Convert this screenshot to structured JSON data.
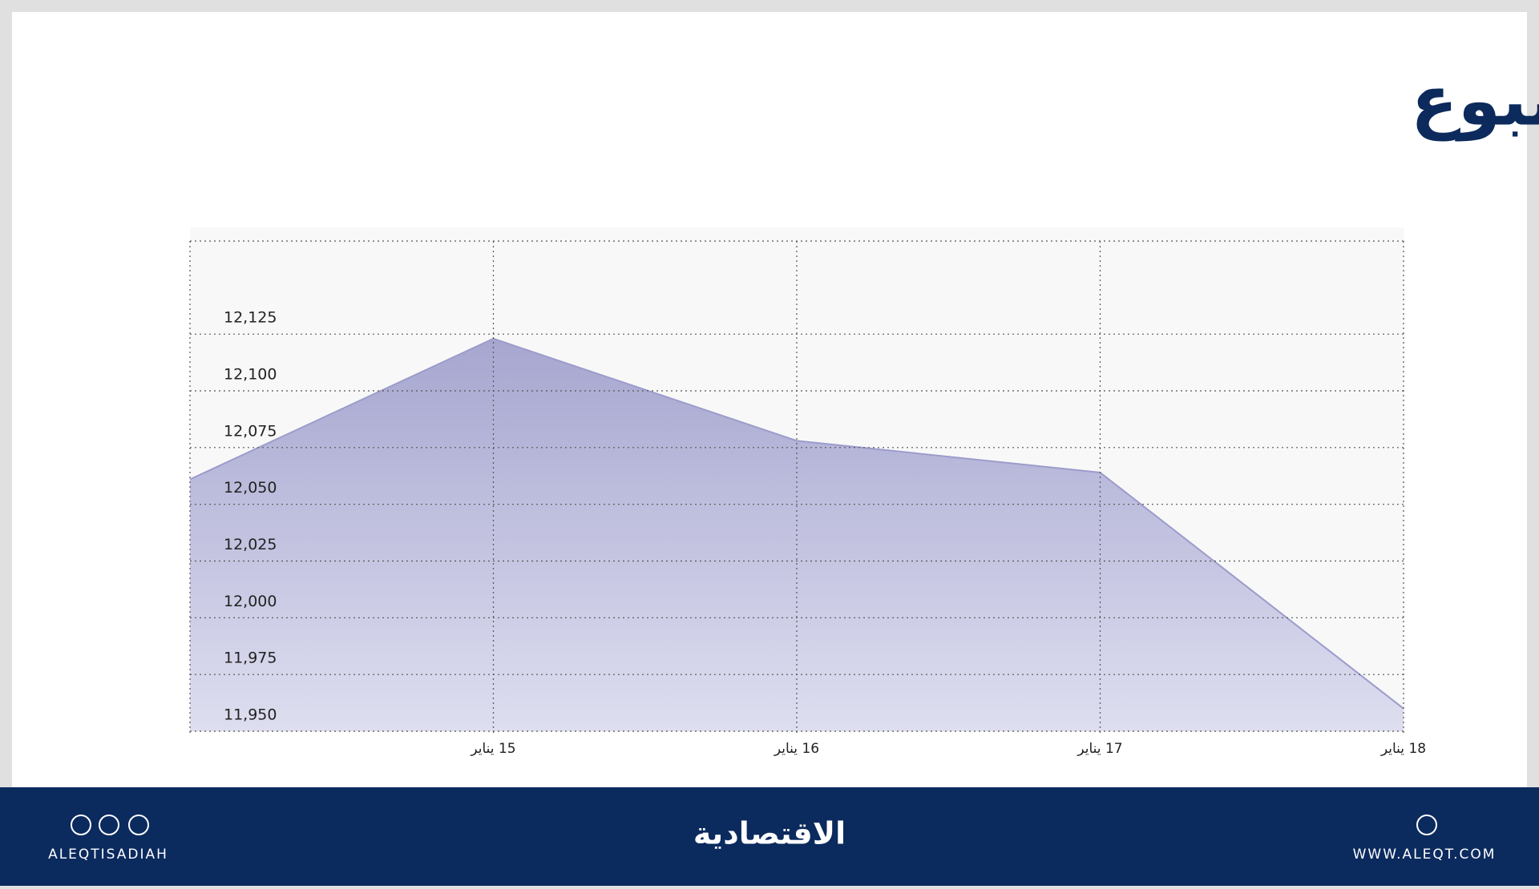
{
  "chart_data": {
    "type": "area",
    "title": "المؤشر في أسبوع",
    "categories": [
      null,
      "15 يناير",
      "16 يناير",
      "17 يناير",
      "18 يناير"
    ],
    "values": [
      12061,
      12123,
      12078,
      12064,
      11960
    ],
    "color": "#9c9ccc",
    "ylim": [
      11950,
      12166
    ],
    "yticks": [
      {
        "value": 11950,
        "label": "11,950"
      },
      {
        "value": 11975,
        "label": "11,975"
      },
      {
        "value": 12000,
        "label": "12,000"
      },
      {
        "value": 12025,
        "label": "12,025"
      },
      {
        "value": 12050,
        "label": "12,050"
      },
      {
        "value": 12075,
        "label": "12,075"
      },
      {
        "value": 12100,
        "label": "12,100"
      },
      {
        "value": 12125,
        "label": "12,125"
      }
    ],
    "grid": true
  },
  "footer": {
    "logo": "الاقتصادية",
    "social": "ALEQTISADIAH",
    "website": "WWW.ALEQT.COM"
  }
}
